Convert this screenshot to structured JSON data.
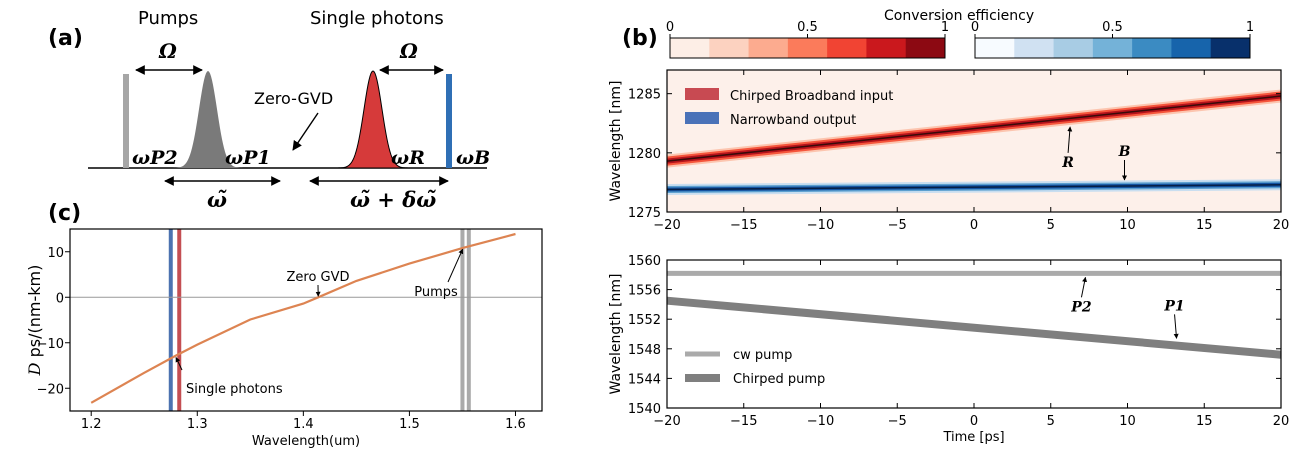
{
  "panel_a": {
    "label": "(a)",
    "pumps_title": "Pumps",
    "photons_title": "Single photons",
    "omega": "Ω",
    "zero_gvd": "Zero-GVD",
    "wp2": "ωP2",
    "wp1": "ωP1",
    "wr": "ωR",
    "wb": "ωB",
    "wtilde": "ω̃",
    "wtilde_delta": "ω̃ + δω̃",
    "colors": {
      "p2": "#a6a6a6",
      "p1": "#7a7a7a",
      "r": "#d63a3a",
      "b": "#2f6fb5"
    }
  },
  "panel_b": {
    "label": "(b)",
    "cbar_title": "Conversion efficiency",
    "cbar_ticks": [
      "0",
      "0.5",
      "1"
    ],
    "reds": [
      "#fdeee6",
      "#fcd2c0",
      "#fcab8f",
      "#fb7b5b",
      "#f14433",
      "#ca181d",
      "#8c0912"
    ],
    "blues": [
      "#f7fbff",
      "#d0e1f2",
      "#a8cce4",
      "#74b2d8",
      "#3b8bc2",
      "#1764ab",
      "#08306b"
    ]
  },
  "panel_c": {
    "label": "(c)"
  },
  "chart_data": [
    {
      "type": "line",
      "panel": "(b) top",
      "xlim": [
        -20,
        20
      ],
      "ylim": [
        1275,
        1287
      ],
      "x_ticks": [
        "−20",
        "−15",
        "−10",
        "−5",
        "0",
        "5",
        "10",
        "15",
        "20"
      ],
      "y_ticks": [
        "1275",
        "1280",
        "1285"
      ],
      "ylabel": "Wavelength [nm]",
      "series": [
        {
          "name": "Chirped Broadband input",
          "color": "#c84a52",
          "x": [
            -20,
            20
          ],
          "y": [
            1279.3,
            1284.8
          ]
        },
        {
          "name": "Narrowband output",
          "color": "#4a72b8",
          "x": [
            -20,
            20
          ],
          "y": [
            1276.9,
            1277.3
          ]
        }
      ],
      "annotations": [
        {
          "text": "R",
          "x": 6,
          "y": 1282.7
        },
        {
          "text": "B",
          "x": 10,
          "y": 1277.2
        }
      ]
    },
    {
      "type": "line",
      "panel": "(b) bottom",
      "xlim": [
        -20,
        20
      ],
      "ylim": [
        1540,
        1560
      ],
      "x_ticks": [
        "−20",
        "−15",
        "−10",
        "−5",
        "0",
        "5",
        "10",
        "15",
        "20"
      ],
      "y_ticks": [
        "1540",
        "1544",
        "1548",
        "1552",
        "1556",
        "1560"
      ],
      "xlabel": "Time [ps]",
      "ylabel": "Wavelength [nm]",
      "series": [
        {
          "name": "cw pump",
          "color": "#aaaaaa",
          "x": [
            -20,
            20
          ],
          "y": [
            1558.2,
            1558.2
          ]
        },
        {
          "name": "Chirped pump",
          "color": "#7f7f7f",
          "x": [
            -20,
            20
          ],
          "y": [
            1554.5,
            1547.2
          ]
        }
      ],
      "annotations": [
        {
          "text": "P2",
          "x": 7,
          "y": 1558.2
        },
        {
          "text": "P1",
          "x": 13,
          "y": 1548.6
        }
      ]
    },
    {
      "type": "line",
      "panel": "(c)",
      "xlim": [
        1.18,
        1.625
      ],
      "ylim": [
        -25,
        15
      ],
      "x_ticks": [
        "1.2",
        "1.3",
        "1.4",
        "1.5",
        "1.6"
      ],
      "y_ticks": [
        "−20",
        "−10",
        "0",
        "10"
      ],
      "xlabel": "Wavelength(um)",
      "ylabel_italic": "D",
      "ylabel_rest": " ps/(nm-km)",
      "series": [
        {
          "color": "#dd8452",
          "x": [
            1.2,
            1.25,
            1.28,
            1.3,
            1.35,
            1.4,
            1.414,
            1.45,
            1.5,
            1.55,
            1.6
          ],
          "y": [
            -23.2,
            -16.6,
            -12.8,
            -10.4,
            -4.9,
            -1.4,
            0,
            3.6,
            7.4,
            10.8,
            13.9
          ]
        }
      ],
      "vlines": [
        {
          "x": 1.275,
          "color": "#4c72b0"
        },
        {
          "x": 1.283,
          "color": "#c44e52"
        },
        {
          "x": 1.55,
          "color": "#aaaaaa"
        },
        {
          "x": 1.556,
          "color": "#aaaaaa"
        }
      ],
      "hline": {
        "y": 0,
        "color": "#999999"
      },
      "annotations": [
        {
          "text": "Zero GVD",
          "x": 1.414,
          "y": 0
        },
        {
          "text": "Pumps",
          "x": 1.553,
          "y": 11
        },
        {
          "text": "Single photons",
          "x": 1.28,
          "y": -12.8
        }
      ]
    }
  ]
}
